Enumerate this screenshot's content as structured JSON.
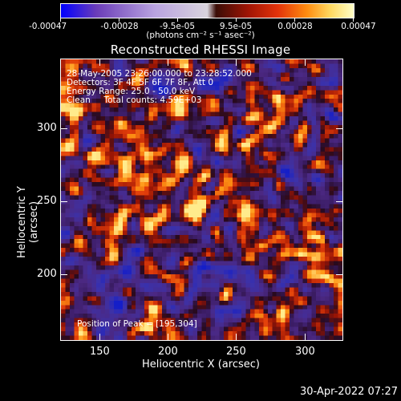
{
  "colorbar": {
    "tick_labels": [
      "-0.00047",
      "-0.00028",
      "-9.5e-05",
      "9.5e-05",
      "0.00028",
      "0.00047"
    ],
    "units": "(photons cm⁻² s⁻¹ asec⁻²)"
  },
  "title": "Reconstructed RHESSI Image",
  "info": {
    "line1": "28-May-2005 23:26:00.000 to 23:28:52.000",
    "line2": "Detectors: 3F 4F 5F 6F 7F 8F, Att 0",
    "line3": "Energy Range: 25.0 - 50.0 keV",
    "line4": "Clean     Total counts: 4.59E+03",
    "peak": "Position of Peak = [195,304]"
  },
  "axes": {
    "xlabel": "Heliocentric X (arcsec)",
    "ylabel": "Heliocentric Y (arcsec)",
    "xticks": [
      "150",
      "200",
      "250",
      "300"
    ],
    "yticks": [
      "300",
      "250",
      "200"
    ],
    "xlim": [
      125,
      317
    ],
    "ylim": [
      153,
      344
    ]
  },
  "timestamp": "30-Apr-2022 07:27",
  "colors": {
    "background": "#000000",
    "foreground": "#ffffff",
    "base_purple": "#3d1f6e"
  }
}
